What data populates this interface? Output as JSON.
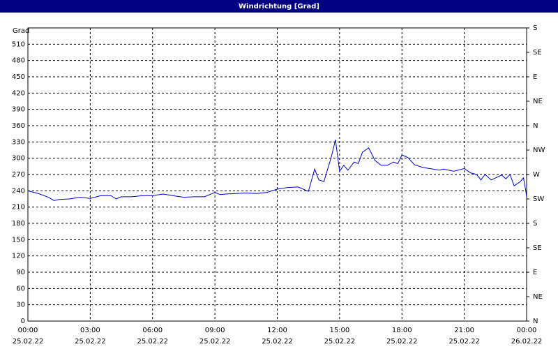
{
  "chart_data": {
    "type": "line",
    "title": "Windrichtung [Grad]",
    "y_label": "Grad",
    "x": [
      0,
      0.5,
      1,
      1.25,
      1.5,
      2,
      2.5,
      3,
      3.5,
      4,
      4.25,
      4.5,
      5,
      5.5,
      6,
      6.5,
      7,
      7.5,
      8,
      8.5,
      9,
      9.25,
      9.5,
      10,
      10.5,
      11,
      11.5,
      12,
      12.5,
      13,
      13.5,
      13.8,
      14,
      14.25,
      14.3,
      14.6,
      14.8,
      15.0,
      15.2,
      15.4,
      15.7,
      15.9,
      16.1,
      16.4,
      16.7,
      17.0,
      17.3,
      17.6,
      17.8,
      18.0,
      18.3,
      18.6,
      19.0,
      19.5,
      19.8,
      20.0,
      20.5,
      21.0,
      21.3,
      21.6,
      21.8,
      22.0,
      22.3,
      22.8,
      23.0,
      23.2,
      23.4,
      23.7,
      23.85,
      23.95,
      24.0
    ],
    "series": [
      {
        "name": "Windrichtung",
        "color": "#0000cc",
        "values": [
          240,
          235,
          228,
          222,
          224,
          225,
          228,
          226,
          231,
          231,
          225,
          229,
          229,
          231,
          231,
          234,
          231,
          228,
          229,
          229,
          237,
          233,
          234,
          235,
          236,
          235,
          237,
          243,
          246,
          247,
          239,
          280,
          260,
          257,
          264,
          302,
          334,
          276,
          287,
          278,
          293,
          290,
          311,
          319,
          296,
          287,
          287,
          293,
          290,
          306,
          301,
          288,
          283,
          280,
          278,
          280,
          276,
          281,
          273,
          270,
          260,
          270,
          260,
          269,
          262,
          270,
          249,
          257,
          264,
          242,
          229
        ]
      }
    ],
    "xlim": [
      0,
      24
    ],
    "xticks": [
      {
        "value": 0,
        "label": "00:00"
      },
      {
        "value": 3,
        "label": "03:00"
      },
      {
        "value": 6,
        "label": "06:00"
      },
      {
        "value": 9,
        "label": "09:00"
      },
      {
        "value": 12,
        "label": "12:00"
      },
      {
        "value": 15,
        "label": "15:00"
      },
      {
        "value": 18,
        "label": "18:00"
      },
      {
        "value": 21,
        "label": "21:00"
      },
      {
        "value": 24,
        "label": "00:00"
      }
    ],
    "xtick_dates": [
      "25.02.22",
      "25.02.22",
      "25.02.22",
      "25.02.22",
      "25.02.22",
      "25.02.22",
      "25.02.22",
      "25.02.22",
      "26.02.22"
    ],
    "ylim": [
      0,
      540
    ],
    "yticks": [
      0,
      30,
      60,
      90,
      120,
      150,
      180,
      210,
      240,
      270,
      300,
      330,
      360,
      390,
      420,
      450,
      480,
      510
    ],
    "y2lim": [
      0,
      540
    ],
    "y2ticks": [
      {
        "value": 0,
        "label": "N"
      },
      {
        "value": 45,
        "label": "NE"
      },
      {
        "value": 90,
        "label": "E"
      },
      {
        "value": 135,
        "label": "SE"
      },
      {
        "value": 180,
        "label": "S"
      },
      {
        "value": 225,
        "label": "SW"
      },
      {
        "value": 270,
        "label": "W"
      },
      {
        "value": 315,
        "label": "NW"
      },
      {
        "value": 360,
        "label": "N"
      },
      {
        "value": 405,
        "label": "NE"
      },
      {
        "value": 450,
        "label": "E"
      },
      {
        "value": 495,
        "label": "SE"
      },
      {
        "value": 540,
        "label": "S"
      }
    ],
    "grid": true
  }
}
